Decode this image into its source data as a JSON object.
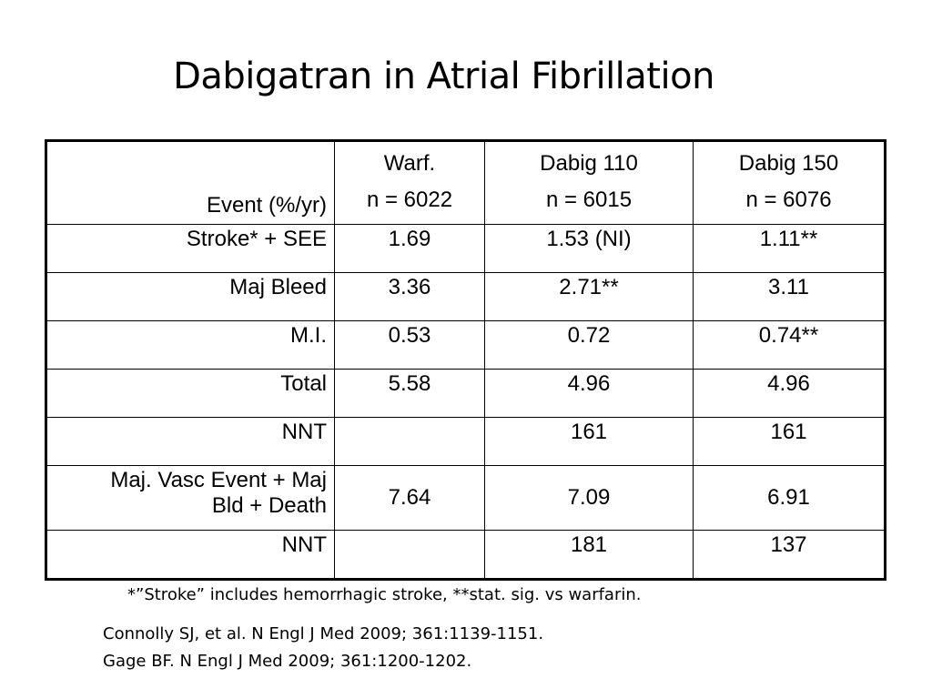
{
  "slide": {
    "title": "Dabigatran in Atrial Fibrillation"
  },
  "table": {
    "header": {
      "event_label": "Event (%/yr)",
      "columns": [
        {
          "name": "Warf.",
          "n": "n = 6022"
        },
        {
          "name": "Dabig 110",
          "n": "n = 6015"
        },
        {
          "name": "Dabig 150",
          "n": "n = 6076"
        }
      ]
    },
    "rows": [
      {
        "label": "Stroke* + SEE",
        "values": [
          "1.69",
          "1.53 (NI)",
          "1.11**"
        ]
      },
      {
        "label": "Maj Bleed",
        "values": [
          "3.36",
          "2.71**",
          "3.11"
        ]
      },
      {
        "label": "M.I.",
        "values": [
          "0.53",
          "0.72",
          "0.74**"
        ]
      },
      {
        "label": "Total",
        "values": [
          "5.58",
          "4.96",
          "4.96"
        ]
      },
      {
        "label": "NNT",
        "values": [
          "",
          "161",
          "161"
        ]
      },
      {
        "label_line1": "Maj. Vasc Event + Maj",
        "label_line2": "Bld + Death",
        "values": [
          "7.64",
          "7.09",
          "6.91"
        ]
      },
      {
        "label": "NNT",
        "values": [
          "",
          "181",
          "137"
        ]
      }
    ]
  },
  "footnote": "*”Stroke” includes hemorrhagic stroke, **stat. sig. vs warfarin.",
  "references": [
    "Connolly SJ, et al. N Engl J Med 2009; 361:1139-1151.",
    "Gage BF. N Engl J Med 2009; 361:1200-1202."
  ]
}
